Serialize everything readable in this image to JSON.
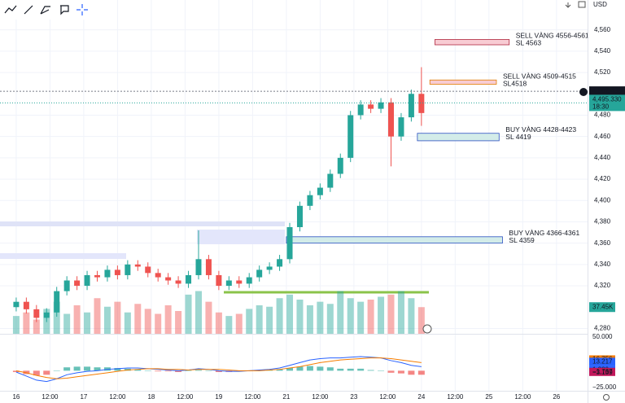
{
  "currency": "USD",
  "chart_data": {
    "type": "candlestick",
    "x": [
      0,
      0.3,
      0.6,
      0.9,
      1.2,
      1.5,
      1.8,
      2.1,
      2.4,
      2.7,
      3,
      3.3,
      3.6,
      3.9,
      4.2,
      4.5,
      4.8,
      5.1,
      5.4,
      5.7,
      6,
      6.3,
      6.6,
      6.9,
      7.2,
      7.5,
      7.8,
      8.1,
      8.4,
      8.7,
      9,
      9.3,
      9.6,
      9.9,
      10.2,
      10.5,
      10.8,
      11.1,
      11.4,
      11.7,
      12
    ],
    "open": [
      4300,
      4305,
      4298,
      4290,
      4295,
      4315,
      4325,
      4320,
      4330,
      4328,
      4335,
      4330,
      4340,
      4338,
      4332,
      4328,
      4325,
      4322,
      4330,
      4345,
      4330,
      4320,
      4325,
      4322,
      4328,
      4335,
      4338,
      4345,
      4375,
      4395,
      4405,
      4412,
      4425,
      4440,
      4480,
      4490,
      4486,
      4492,
      4460,
      4478,
      4500
    ],
    "high": [
      4309,
      4309,
      4302,
      4299,
      4319,
      4329,
      4329,
      4334,
      4334,
      4339,
      4339,
      4344,
      4344,
      4342,
      4336,
      4332,
      4329,
      4334,
      4372,
      4349,
      4334,
      4329,
      4329,
      4332,
      4339,
      4342,
      4349,
      4379,
      4399,
      4409,
      4416,
      4429,
      4444,
      4484,
      4494,
      4494,
      4496,
      4496,
      4482,
      4504,
      4525
    ],
    "low": [
      4296,
      4294,
      4286,
      4286,
      4291,
      4311,
      4316,
      4316,
      4324,
      4324,
      4326,
      4326,
      4334,
      4328,
      4324,
      4321,
      4318,
      4318,
      4326,
      4326,
      4316,
      4316,
      4318,
      4318,
      4324,
      4331,
      4334,
      4341,
      4371,
      4391,
      4401,
      4408,
      4421,
      4436,
      4476,
      4482,
      4482,
      4432,
      4456,
      4474,
      4470
    ],
    "close": [
      4305,
      4298,
      4290,
      4295,
      4315,
      4325,
      4320,
      4330,
      4328,
      4335,
      4330,
      4340,
      4338,
      4332,
      4328,
      4325,
      4322,
      4330,
      4345,
      4330,
      4320,
      4325,
      4322,
      4328,
      4335,
      4338,
      4345,
      4375,
      4395,
      4405,
      4412,
      4425,
      4440,
      4480,
      4490,
      4486,
      4492,
      4460,
      4478,
      4500,
      4482
    ],
    "up_color": "#26a69a",
    "down_color": "#ef5350",
    "ylim": [
      4275,
      4588
    ],
    "yticks": [
      {
        "value": 4280,
        "label": "4,280"
      },
      {
        "value": 4320,
        "label": "4,320"
      },
      {
        "value": 4340,
        "label": "4,340"
      },
      {
        "value": 4360,
        "label": "4,360"
      },
      {
        "value": 4380,
        "label": "4,380"
      },
      {
        "value": 4400,
        "label": "4,400"
      },
      {
        "value": 4420,
        "label": "4,420"
      },
      {
        "value": 4440,
        "label": "4,440"
      },
      {
        "value": 4460,
        "label": "4,460"
      },
      {
        "value": 4480,
        "label": "4,480"
      },
      {
        "value": 4520,
        "label": "4,520"
      },
      {
        "value": 4540,
        "label": "4,540"
      },
      {
        "value": 4560,
        "label": "4,560"
      }
    ],
    "xlim": [
      -0.48,
      16.92
    ],
    "xticks": [
      {
        "value": 0,
        "label": "16"
      },
      {
        "value": 1,
        "label": "12:00"
      },
      {
        "value": 2,
        "label": "17"
      },
      {
        "value": 3,
        "label": "12:00"
      },
      {
        "value": 4,
        "label": "18"
      },
      {
        "value": 5,
        "label": "12:00"
      },
      {
        "value": 6,
        "label": "19"
      },
      {
        "value": 7,
        "label": "12:00"
      },
      {
        "value": 8,
        "label": "21"
      },
      {
        "value": 9,
        "label": "12:00"
      },
      {
        "value": 10,
        "label": "23"
      },
      {
        "value": 11,
        "label": "12:00"
      },
      {
        "value": 12,
        "label": "24"
      },
      {
        "value": 13,
        "label": "12:00"
      },
      {
        "value": 14,
        "label": "25"
      },
      {
        "value": 15,
        "label": "12:00"
      },
      {
        "value": 16,
        "label": "26"
      }
    ],
    "last_price": {
      "value": 4502.438,
      "label": "4,502.438"
    },
    "close_price": {
      "value": 4495.33,
      "label": "4,495.330"
    },
    "countdown": "18:30",
    "zones": [
      {
        "text": [
          "SELL VÀNG 4556-4561",
          "SL 4563"
        ],
        "x": [
          12.4,
          14.6
        ],
        "y": [
          4546,
          4551
        ],
        "color": "#f8ccd3",
        "text_color": "#b0283f"
      },
      {
        "text": [
          "SELL VÀNG 4509-4515",
          "SL4518"
        ],
        "x": [
          12.25,
          14.22
        ],
        "y": [
          4509,
          4513
        ],
        "color": "#f8ccd3",
        "text_color": "#e07b00"
      },
      {
        "text": [
          "BUY VÀNG 4428-4423",
          "SL 4419"
        ],
        "x": [
          11.88,
          14.3
        ],
        "y": [
          4456,
          4463
        ],
        "color": "#d3ece9",
        "text_color": "#2a4fc0"
      },
      {
        "text": [
          "BUY VÀNG 4366-4361",
          "SL 4359"
        ],
        "x": [
          8,
          14.4
        ],
        "y": [
          4360,
          4366
        ],
        "color": "#d3ece9",
        "text_color": "#2a4fc0"
      }
    ],
    "volume": [
      25,
      30,
      20,
      35,
      45,
      28,
      40,
      30,
      50,
      38,
      45,
      30,
      42,
      35,
      28,
      40,
      32,
      55,
      60,
      45,
      30,
      25,
      28,
      35,
      40,
      38,
      50,
      55,
      48,
      40,
      45,
      42,
      60,
      50,
      45,
      48,
      52,
      55,
      60,
      50,
      37.45
    ],
    "volume_ylim": [
      0,
      80
    ],
    "volume_label": {
      "value": 37.45,
      "label": "37.45K"
    },
    "macd": {
      "ylim": [
        -29.8,
        54.8
      ],
      "ticks": [
        {
          "value": 50,
          "label": "50.000",
          "color": "#ffffff"
        },
        {
          "value": 16.756,
          "label": "16.756",
          "color": "#f57c00"
        },
        {
          "value": 13.217,
          "label": "13.217",
          "color": "#2962ff"
        },
        {
          "value": 1.229,
          "label": "1.229",
          "color": "#2962ff"
        },
        {
          "value": -1.767,
          "label": "−1.767",
          "color": "#c2185b"
        },
        {
          "value": -3.139,
          "label": "−3.139",
          "color": "#ffffff"
        },
        {
          "value": -25,
          "label": "−25.000",
          "color": "#ffffff"
        }
      ],
      "line": [
        -2,
        -8,
        -14,
        -16,
        -12,
        -6,
        -3,
        -1,
        0,
        2,
        3,
        4,
        4,
        3,
        2,
        1,
        0,
        1,
        3,
        2,
        0,
        -1,
        -1,
        0,
        1,
        2,
        4,
        8,
        12,
        16,
        18,
        19,
        19,
        20,
        21,
        20,
        19,
        15,
        12,
        8,
        6
      ],
      "signal": [
        0,
        -3,
        -7,
        -10,
        -12,
        -11,
        -9,
        -7,
        -5,
        -3,
        -1,
        1,
        2,
        3,
        3,
        2,
        2,
        1,
        2,
        2,
        2,
        1,
        0,
        0,
        0,
        1,
        2,
        4,
        6,
        9,
        12,
        14,
        16,
        17,
        18,
        19,
        19,
        18,
        16,
        14,
        12
      ],
      "histogram": [
        -2,
        -5,
        -7,
        -6,
        0,
        5,
        6,
        6,
        5,
        5,
        4,
        3,
        2,
        0,
        -1,
        -1,
        -2,
        0,
        1,
        0,
        -2,
        -2,
        -1,
        0,
        1,
        1,
        2,
        4,
        6,
        7,
        6,
        5,
        3,
        3,
        3,
        1,
        0,
        -3,
        -4,
        -6,
        -6
      ],
      "line_color": "#2962ff",
      "signal_color": "#f57c00"
    }
  }
}
